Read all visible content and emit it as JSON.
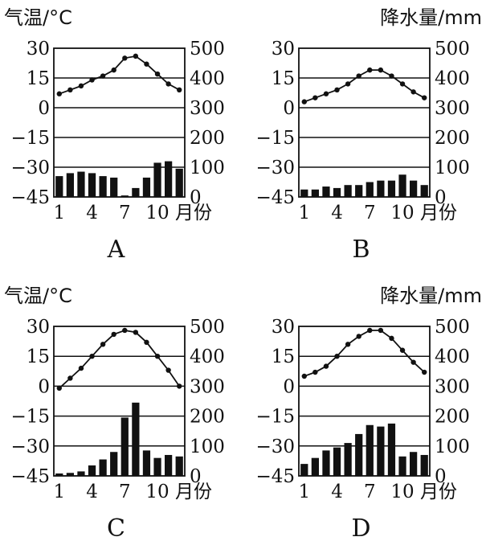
{
  "texts": {
    "temp_label": "气温/°C",
    "precip_label": "降水量/mm",
    "month_unit": "月份"
  },
  "chart_data": [
    {
      "id": "A",
      "type": "bar+line",
      "title": "A",
      "ylabel_left": "气温/°C",
      "ylabel_right": "降水量/mm",
      "xlabel": "月份",
      "x_ticks": [
        "1",
        "4",
        "7",
        "10"
      ],
      "temp_range": [
        -45,
        30
      ],
      "temp_ticks": [
        "30",
        "15",
        "0",
        "−15",
        "−30",
        "−45"
      ],
      "precip_range": [
        0,
        500
      ],
      "precip_ticks": [
        "500",
        "400",
        "300",
        "200",
        "100",
        "0"
      ],
      "temperature": [
        7,
        9,
        11,
        14,
        16,
        19,
        25,
        26,
        22,
        17,
        12,
        9
      ],
      "precipitation": [
        70,
        80,
        85,
        80,
        70,
        65,
        5,
        30,
        65,
        115,
        120,
        95
      ]
    },
    {
      "id": "B",
      "type": "bar+line",
      "title": "B",
      "ylabel_left": "气温/°C",
      "ylabel_right": "降水量/mm",
      "xlabel": "月份",
      "x_ticks": [
        "1",
        "4",
        "7",
        "10"
      ],
      "temp_range": [
        -45,
        30
      ],
      "temp_ticks": [
        "30",
        "15",
        "0",
        "−15",
        "−30",
        "−45"
      ],
      "precip_range": [
        0,
        500
      ],
      "precip_ticks": [
        "500",
        "400",
        "300",
        "200",
        "100",
        "0"
      ],
      "temperature": [
        3,
        5,
        7,
        9,
        12,
        16,
        19,
        19,
        16,
        12,
        8,
        5
      ],
      "precipitation": [
        25,
        25,
        35,
        30,
        40,
        40,
        50,
        55,
        55,
        75,
        55,
        40
      ]
    },
    {
      "id": "C",
      "type": "bar+line",
      "title": "C",
      "ylabel_left": "气温/°C",
      "ylabel_right": "降水量/mm",
      "xlabel": "月份",
      "x_ticks": [
        "1",
        "4",
        "7",
        "10"
      ],
      "temp_range": [
        -45,
        30
      ],
      "temp_ticks": [
        "30",
        "15",
        "0",
        "−15",
        "−30",
        "−45"
      ],
      "precip_range": [
        0,
        500
      ],
      "precip_ticks": [
        "500",
        "400",
        "300",
        "200",
        "100",
        "0"
      ],
      "temperature": [
        -1,
        4,
        9,
        15,
        21,
        26,
        28,
        27,
        22,
        15,
        8,
        0
      ],
      "precipitation": [
        8,
        10,
        15,
        35,
        55,
        80,
        195,
        245,
        85,
        60,
        70,
        65
      ]
    },
    {
      "id": "D",
      "type": "bar+line",
      "title": "D",
      "ylabel_left": "气温/°C",
      "ylabel_right": "降水量/mm",
      "xlabel": "月份",
      "x_ticks": [
        "1",
        "4",
        "7",
        "10"
      ],
      "temp_range": [
        -45,
        30
      ],
      "temp_ticks": [
        "30",
        "15",
        "0",
        "−15",
        "−30",
        "−45"
      ],
      "precip_range": [
        0,
        500
      ],
      "precip_ticks": [
        "500",
        "400",
        "300",
        "200",
        "100",
        "0"
      ],
      "temperature": [
        5,
        7,
        10,
        15,
        21,
        25,
        28,
        28,
        24,
        18,
        12,
        7
      ],
      "precipitation": [
        40,
        60,
        85,
        95,
        110,
        140,
        170,
        165,
        175,
        65,
        80,
        70
      ]
    }
  ]
}
